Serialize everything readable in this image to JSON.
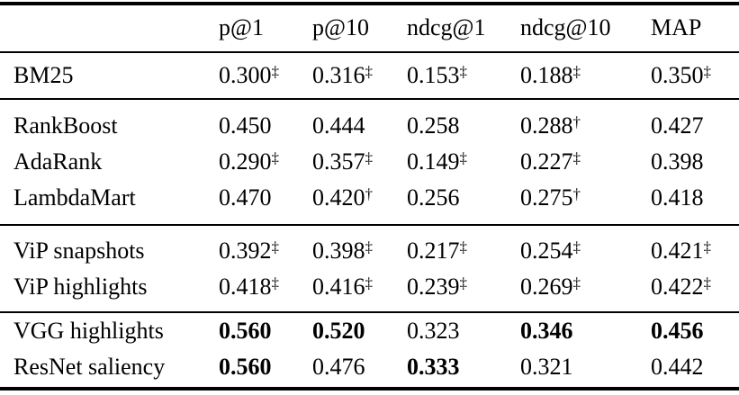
{
  "colors": {
    "text": "#000000",
    "background": "#ffffff",
    "rule": "#000000"
  },
  "table": {
    "columns": [
      "",
      "p@1",
      "p@10",
      "ndcg@1",
      "ndcg@10",
      "MAP"
    ],
    "sections": [
      {
        "rows": [
          {
            "label": "BM25",
            "cells": [
              {
                "v": "0.300",
                "s": "‡"
              },
              {
                "v": "0.316",
                "s": "‡"
              },
              {
                "v": "0.153",
                "s": "‡"
              },
              {
                "v": "0.188",
                "s": "‡"
              },
              {
                "v": "0.350",
                "s": "‡"
              }
            ]
          }
        ]
      },
      {
        "rows": [
          {
            "label": "RankBoost",
            "cells": [
              {
                "v": "0.450"
              },
              {
                "v": "0.444"
              },
              {
                "v": "0.258"
              },
              {
                "v": "0.288",
                "s": "†"
              },
              {
                "v": "0.427"
              }
            ]
          },
          {
            "label": "AdaRank",
            "cells": [
              {
                "v": "0.290",
                "s": "‡"
              },
              {
                "v": "0.357",
                "s": "‡"
              },
              {
                "v": "0.149",
                "s": "‡"
              },
              {
                "v": "0.227",
                "s": "‡"
              },
              {
                "v": "0.398"
              }
            ]
          },
          {
            "label": "LambdaMart",
            "cells": [
              {
                "v": "0.470"
              },
              {
                "v": "0.420",
                "s": "†"
              },
              {
                "v": "0.256"
              },
              {
                "v": "0.275",
                "s": "†"
              },
              {
                "v": "0.418"
              }
            ]
          }
        ]
      },
      {
        "rows": [
          {
            "label": "ViP snapshots",
            "cells": [
              {
                "v": "0.392",
                "s": "‡"
              },
              {
                "v": "0.398",
                "s": "‡"
              },
              {
                "v": "0.217",
                "s": "‡"
              },
              {
                "v": "0.254",
                "s": "‡"
              },
              {
                "v": "0.421",
                "s": "‡"
              }
            ]
          },
          {
            "label": "ViP highlights",
            "cells": [
              {
                "v": "0.418",
                "s": "‡"
              },
              {
                "v": "0.416",
                "s": "‡"
              },
              {
                "v": "0.239",
                "s": "‡"
              },
              {
                "v": "0.269",
                "s": "‡"
              },
              {
                "v": "0.422",
                "s": "‡"
              }
            ]
          }
        ]
      },
      {
        "rows": [
          {
            "label": "VGG highlights",
            "cells": [
              {
                "v": "0.560",
                "b": true
              },
              {
                "v": "0.520",
                "b": true
              },
              {
                "v": "0.323"
              },
              {
                "v": "0.346",
                "b": true
              },
              {
                "v": "0.456",
                "b": true
              }
            ]
          },
          {
            "label": "ResNet saliency",
            "cells": [
              {
                "v": "0.560",
                "b": true
              },
              {
                "v": "0.476"
              },
              {
                "v": "0.333",
                "b": true
              },
              {
                "v": "0.321"
              },
              {
                "v": "0.442"
              }
            ]
          }
        ]
      }
    ]
  }
}
